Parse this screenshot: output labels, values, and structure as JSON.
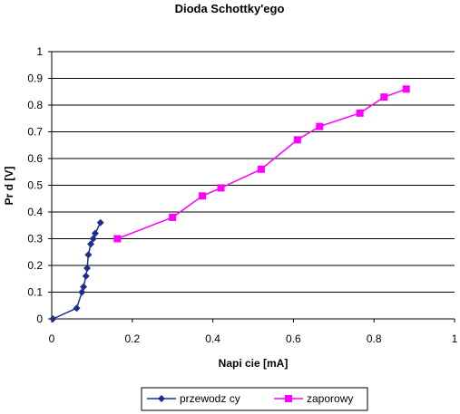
{
  "chart_data": {
    "type": "line",
    "title": "Dioda Schottky'ego",
    "xlabel": "Napi cie [mA]",
    "ylabel": "Pr d [V]",
    "xlim": [
      0,
      1
    ],
    "ylim": [
      0,
      1
    ],
    "x_ticks": [
      "0",
      "0.2",
      "0.4",
      "0.6",
      "0.8",
      "1"
    ],
    "y_ticks": [
      "0",
      "0.1",
      "0.2",
      "0.3",
      "0.4",
      "0.5",
      "0.6",
      "0.7",
      "0.8",
      "0.9",
      "1"
    ],
    "grid": "horizontal",
    "legend_position": "bottom",
    "series": [
      {
        "name": "przewodz cy",
        "color": "#1c2e8a",
        "marker": "diamond",
        "points": [
          [
            0.003,
            0.0
          ],
          [
            0.062,
            0.04
          ],
          [
            0.075,
            0.1
          ],
          [
            0.079,
            0.12
          ],
          [
            0.085,
            0.16
          ],
          [
            0.088,
            0.19
          ],
          [
            0.091,
            0.24
          ],
          [
            0.097,
            0.28
          ],
          [
            0.103,
            0.3
          ],
          [
            0.108,
            0.32
          ],
          [
            0.121,
            0.36
          ]
        ]
      },
      {
        "name": "zaporowy",
        "color": "#ff00ff",
        "marker": "square",
        "points": [
          [
            0.163,
            0.3
          ],
          [
            0.3,
            0.38
          ],
          [
            0.374,
            0.46
          ],
          [
            0.42,
            0.49
          ],
          [
            0.52,
            0.56
          ],
          [
            0.61,
            0.67
          ],
          [
            0.665,
            0.72
          ],
          [
            0.765,
            0.77
          ],
          [
            0.825,
            0.83
          ],
          [
            0.88,
            0.86
          ]
        ]
      }
    ]
  }
}
